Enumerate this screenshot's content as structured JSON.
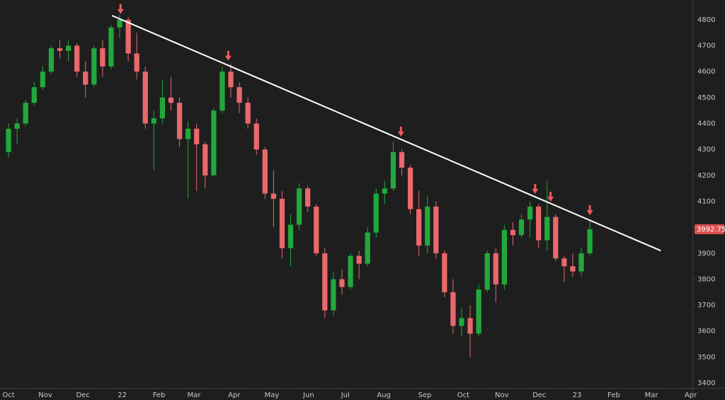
{
  "chart_data": {
    "type": "candlestick",
    "x": [
      0,
      1,
      2,
      3,
      4,
      5,
      6,
      7,
      8,
      9,
      10,
      11,
      12,
      13,
      14,
      15,
      16,
      17,
      18,
      19,
      20,
      21,
      22,
      23,
      24,
      25,
      26,
      27,
      28,
      29,
      30,
      31,
      32,
      33,
      34,
      35,
      36,
      37,
      38,
      39,
      40,
      41,
      42,
      43,
      44,
      45,
      46,
      47,
      48,
      49,
      50,
      51,
      52,
      53,
      54,
      55,
      56,
      57,
      58,
      59,
      60,
      61,
      62,
      63,
      64,
      65,
      66,
      67,
      68
    ],
    "open": [
      4290,
      4380,
      4400,
      4480,
      4540,
      4600,
      4690,
      4680,
      4700,
      4600,
      4550,
      4690,
      4620,
      4770,
      4800,
      4670,
      4600,
      4400,
      4420,
      4500,
      4480,
      4340,
      4380,
      4320,
      4200,
      4450,
      4600,
      4540,
      4480,
      4400,
      4300,
      4130,
      4110,
      3920,
      4010,
      4150,
      4080,
      3900,
      3680,
      3800,
      3770,
      3890,
      3860,
      3980,
      4130,
      4150,
      4290,
      4230,
      4070,
      3930,
      4080,
      3900,
      3750,
      3620,
      3650,
      3590,
      3760,
      3900,
      3780,
      3990,
      3970,
      4030,
      4080,
      3950,
      4040,
      3880,
      3850,
      3830,
      3900
    ],
    "high": [
      4400,
      4420,
      4490,
      4560,
      4620,
      4700,
      4720,
      4720,
      4710,
      4640,
      4700,
      4720,
      4780,
      4820,
      4810,
      4750,
      4620,
      4450,
      4570,
      4580,
      4500,
      4410,
      4400,
      4330,
      4460,
      4620,
      4630,
      4560,
      4500,
      4420,
      4310,
      4220,
      4140,
      4050,
      4170,
      4160,
      4090,
      3920,
      3830,
      3840,
      3900,
      3910,
      4000,
      4150,
      4180,
      4330,
      4300,
      4240,
      4140,
      4120,
      4100,
      3910,
      3800,
      3690,
      3700,
      3780,
      3910,
      3920,
      4010,
      4020,
      4050,
      4100,
      4090,
      4180,
      4050,
      3890,
      3900,
      3920,
      4030
    ],
    "low": [
      4270,
      4320,
      4390,
      4470,
      4530,
      4590,
      4650,
      4640,
      4580,
      4500,
      4540,
      4580,
      4610,
      4730,
      4640,
      4570,
      4380,
      4220,
      4400,
      4450,
      4310,
      4110,
      4140,
      4150,
      4200,
      4440,
      4500,
      4440,
      4380,
      4280,
      4110,
      4000,
      3880,
      3850,
      3990,
      4060,
      3890,
      3650,
      3660,
      3740,
      3760,
      3800,
      3850,
      3960,
      4090,
      4140,
      4200,
      4050,
      3890,
      3900,
      3880,
      3730,
      3590,
      3580,
      3500,
      3580,
      3750,
      3710,
      3760,
      3930,
      3960,
      3960,
      3920,
      3910,
      3870,
      3790,
      3810,
      3810,
      3890
    ],
    "close": [
      4380,
      4400,
      4480,
      4540,
      4600,
      4690,
      4680,
      4700,
      4600,
      4550,
      4690,
      4620,
      4770,
      4800,
      4670,
      4600,
      4400,
      4420,
      4500,
      4480,
      4340,
      4380,
      4320,
      4200,
      4450,
      4600,
      4540,
      4480,
      4400,
      4300,
      4130,
      4110,
      3920,
      4010,
      4150,
      4080,
      3900,
      3680,
      3800,
      3770,
      3890,
      3860,
      3980,
      4130,
      4150,
      4290,
      4230,
      4070,
      3930,
      4080,
      3900,
      3750,
      3620,
      3650,
      3590,
      3760,
      3900,
      3780,
      3990,
      3970,
      4030,
      4080,
      3950,
      4040,
      3880,
      3850,
      3830,
      3900,
      3992.75
    ],
    "up_color": "#22a83c",
    "down_color": "#e8686c",
    "xlim": [
      -1,
      80
    ],
    "xticks": [
      {
        "value": 0,
        "label": "Oct"
      },
      {
        "value": 4.3,
        "label": "Nov"
      },
      {
        "value": 8.7,
        "label": "Dec"
      },
      {
        "value": 13.3,
        "label": "22"
      },
      {
        "value": 17.6,
        "label": "Feb"
      },
      {
        "value": 21.7,
        "label": "Mar"
      },
      {
        "value": 26.4,
        "label": "Apr"
      },
      {
        "value": 30.8,
        "label": "May"
      },
      {
        "value": 35.1,
        "label": "Jun"
      },
      {
        "value": 39.4,
        "label": "Jul"
      },
      {
        "value": 43.9,
        "label": "Aug"
      },
      {
        "value": 48.7,
        "label": "Sep"
      },
      {
        "value": 53.2,
        "label": "Oct"
      },
      {
        "value": 57.7,
        "label": "Nov"
      },
      {
        "value": 62.1,
        "label": "Dec"
      },
      {
        "value": 66.5,
        "label": "23"
      },
      {
        "value": 70.8,
        "label": "Feb"
      },
      {
        "value": 75.2,
        "label": "Mar"
      },
      {
        "value": 79.8,
        "label": "Apr"
      }
    ],
    "ylim": [
      3381,
      4876
    ],
    "yticks": [
      3400,
      3500,
      3600,
      3700,
      3800,
      3900,
      4000,
      4100,
      4200,
      4300,
      4400,
      4500,
      4600,
      4700,
      4800
    ],
    "trendline": {
      "x": [
        12.1,
        76.3
      ],
      "y": [
        4816,
        3910
      ],
      "color": "#ffffff"
    },
    "arrows": {
      "x": [
        13.1,
        25.7,
        45.9,
        61.6,
        63.4,
        68.0
      ],
      "y": [
        4822,
        4642,
        4350,
        4129,
        4099,
        4047
      ],
      "color": "#f05a5a"
    },
    "last_price_color": "#e05050"
  }
}
